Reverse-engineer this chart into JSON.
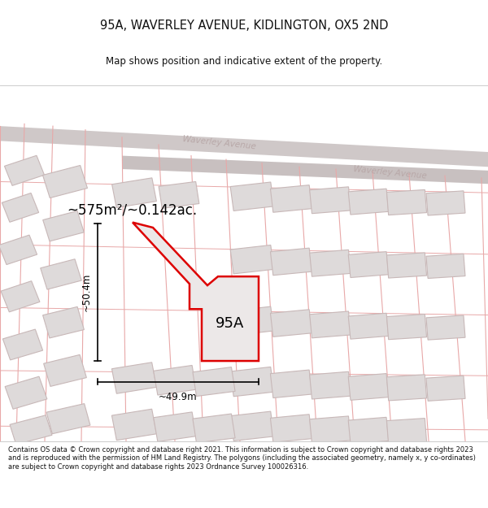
{
  "title": "95A, WAVERLEY AVENUE, KIDLINGTON, OX5 2ND",
  "subtitle": "Map shows position and indicative extent of the property.",
  "footer": "Contains OS data © Crown copyright and database right 2021. This information is subject to Crown copyright and database rights 2023 and is reproduced with the permission of HM Land Registry. The polygons (including the associated geometry, namely x, y co-ordinates) are subject to Crown copyright and database rights 2023 Ordnance Survey 100026316.",
  "area_label": "~575m²/~0.142ac.",
  "property_label": "95A",
  "dim_height": "~50.4m",
  "dim_width": "~49.9m",
  "street_label_1": "Waverley Avenue",
  "street_label_2": "Waverley Avenue",
  "map_bg": "#f7f4f4",
  "road_fill": "#ddd5d5",
  "road_edge": "#c8b8b8",
  "parcel_line_color": "#e8a8a8",
  "building_fill": "#dedada",
  "building_edge": "#c8b8b8",
  "highlight_fill": "#eae6e6",
  "plot_color": "#dd0000",
  "dim_color": "#111111",
  "title_color": "#111111",
  "footer_color": "#111111",
  "street_color": "#b8a8a8"
}
